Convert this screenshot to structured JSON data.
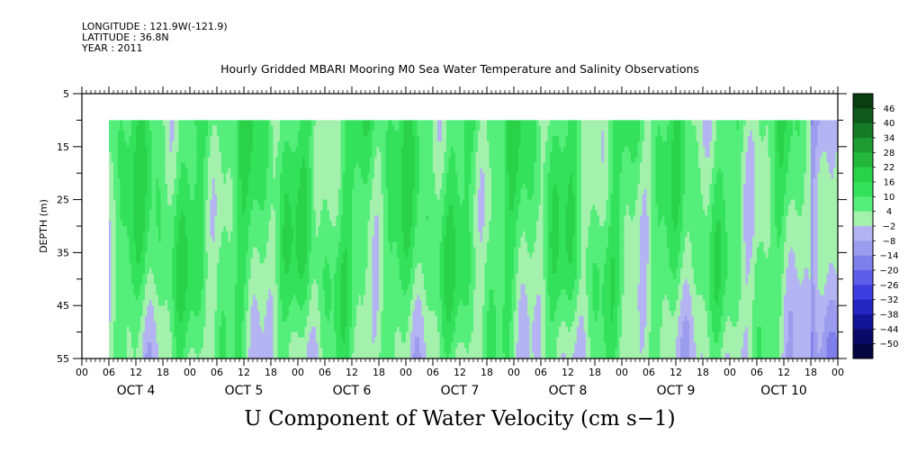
{
  "header": {
    "longitude": "LONGITUDE : 121.9W(-121.9)",
    "latitude": "LATITUDE : 36.8N",
    "year": "YEAR : 2011"
  },
  "chart_data": {
    "type": "heatmap",
    "title": "Hourly Gridded MBARI Mooring M0 Sea Water Temperature and Salinity Observations",
    "main_title": "U Component of Water Velocity (cm s−1)",
    "ylabel": "DEPTH (m)",
    "ylim": [
      5,
      55
    ],
    "y_reversed": true,
    "yticks": [
      "5",
      "15",
      "25",
      "35",
      "45",
      "55"
    ],
    "xlim_hours": [
      0,
      168
    ],
    "data_start_hour": 6,
    "data_end_hour": 168,
    "data_depth_range": [
      10,
      55
    ],
    "hour_ticks": [
      "00",
      "06",
      "12",
      "18",
      "00",
      "06",
      "12",
      "18",
      "00",
      "06",
      "12",
      "18",
      "00",
      "06",
      "12",
      "18",
      "00",
      "06",
      "12",
      "18",
      "00",
      "06",
      "12",
      "18",
      "00",
      "06",
      "12",
      "18",
      "00"
    ],
    "day_labels": [
      "OCT  4",
      "OCT  5",
      "OCT  6",
      "OCT  7",
      "OCT  8",
      "OCT  9",
      "OCT 10"
    ],
    "colorbar": {
      "levels": [
        "46",
        "40",
        "34",
        "28",
        "22",
        "16",
        "10",
        "4",
        "−2",
        "−8",
        "−14",
        "−20",
        "−26",
        "−32",
        "−38",
        "−44",
        "−50"
      ],
      "colors": [
        "#0a3d12",
        "#115a1d",
        "#167a27",
        "#1d9a31",
        "#23b83c",
        "#2ad24a",
        "#33e25a",
        "#55ee7a",
        "#a4f0ad",
        "#b4b4f2",
        "#9c9cee",
        "#7f7feb",
        "#5e5ee8",
        "#3e3ee0",
        "#2525c2",
        "#141496",
        "#0a0a66",
        "#050540"
      ]
    },
    "values_note_sample": "positive (green, 4..22) dominates; negative (blue, -2..-14) near bottom and late period"
  }
}
